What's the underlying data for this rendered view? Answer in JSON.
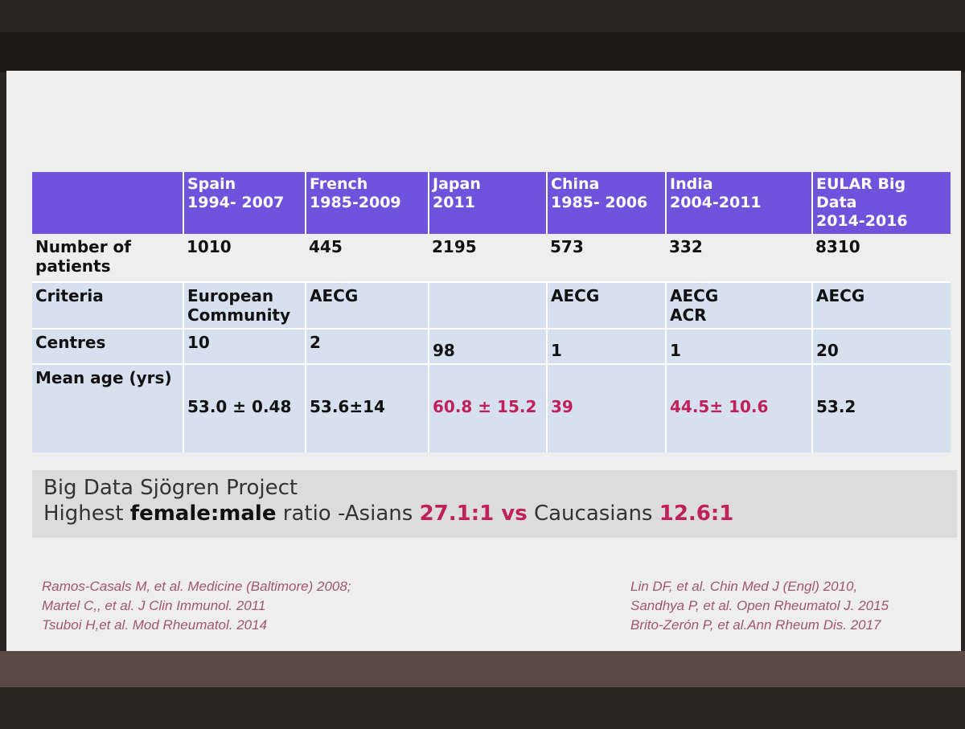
{
  "table": {
    "header": [
      {
        "name": "Spain",
        "period": "1994- 2007"
      },
      {
        "name": "French",
        "period": "1985-2009"
      },
      {
        "name": "Japan",
        "period": "2011"
      },
      {
        "name": "China",
        "period": "1985- 2006"
      },
      {
        "name": "India",
        "period": "2004-2011"
      },
      {
        "name": "EULAR Big Data",
        "period": "2014-2016"
      }
    ],
    "rows": [
      {
        "label": "Number of patients",
        "cells": [
          1010,
          445,
          2195,
          573,
          332,
          8310
        ]
      },
      {
        "label": "Criteria",
        "cells": [
          "European Community",
          "AECG",
          null,
          "AECG",
          [
            "AECG",
            "ACR"
          ],
          "AECG"
        ]
      },
      {
        "label": "Centres",
        "cells": [
          10,
          2,
          98,
          1,
          1,
          20
        ]
      },
      {
        "label": "Mean age (yrs)",
        "cells": [
          "53.0 ± 0.48",
          "53.6±14",
          "60.8 ± 15.2",
          "39",
          "44.5± 10.6",
          "53.2"
        ],
        "highlight": [
          false,
          false,
          true,
          true,
          true,
          false
        ]
      }
    ]
  },
  "note": {
    "line1": "Big Data Sjögren Project",
    "line2": [
      {
        "text": "Highest ",
        "style": "normal"
      },
      {
        "text": "female:male",
        "style": "bold"
      },
      {
        "text": " ratio -Asians ",
        "style": "normal"
      },
      {
        "text": "27.1:1 vs",
        "style": "red"
      },
      {
        "text": " Caucasians ",
        "style": "normal"
      },
      {
        "text": "12.6:1",
        "style": "red"
      }
    ]
  },
  "references": {
    "left": [
      "Ramos-Casals M, et al. Medicine (Baltimore) 2008;",
      "Martel C,, et al. J Clin Immunol. 2011",
      "Tsuboi H,et al. Mod Rheumatol. 2014"
    ],
    "right": [
      "Lin DF, et al. Chin Med J (Engl) 2010,",
      "Sandhya P, et al. Open Rheumatol J. 2015",
      "Brito-Zerón P, et al.Ann Rheum Dis. 2017"
    ]
  }
}
